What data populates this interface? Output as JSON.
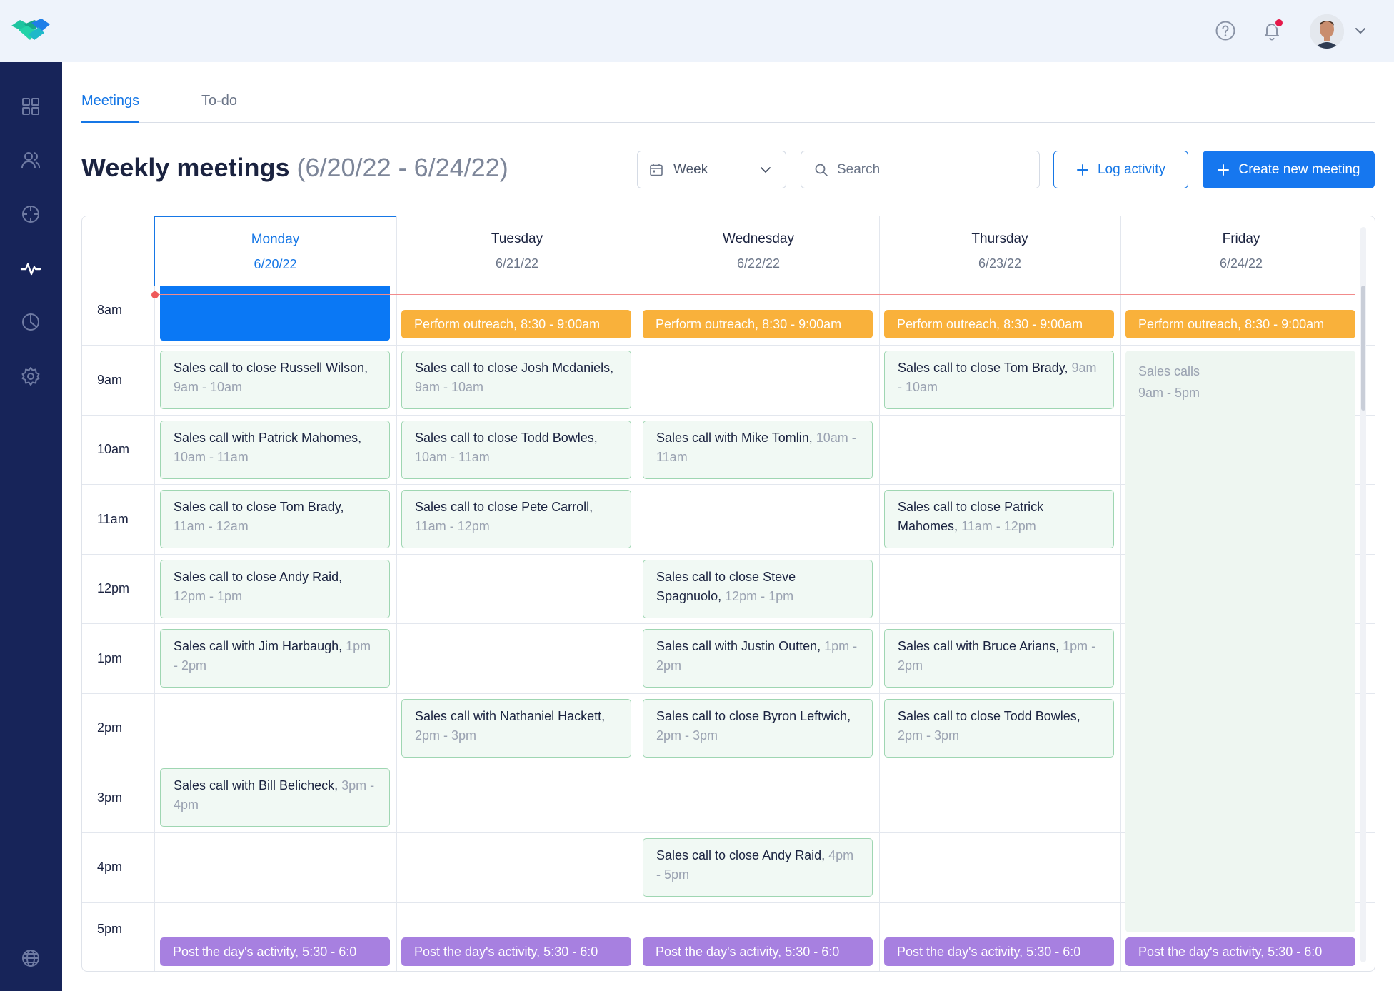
{
  "header": {
    "logo": "handshake-logo",
    "icons": [
      "help-icon",
      "bell-icon"
    ],
    "notification_dot": true
  },
  "sidebar": {
    "items": [
      {
        "icon": "grid-icon",
        "name": "dashboard"
      },
      {
        "icon": "users-icon",
        "name": "contacts"
      },
      {
        "icon": "target-icon",
        "name": "goals"
      },
      {
        "icon": "activity-icon",
        "name": "activity"
      },
      {
        "icon": "pie-chart-icon",
        "name": "reports"
      },
      {
        "icon": "gear-icon",
        "name": "settings"
      },
      {
        "icon": "globe-icon",
        "name": "language"
      }
    ]
  },
  "tabs": [
    {
      "label": "Meetings",
      "active": true
    },
    {
      "label": "To-do",
      "active": false
    }
  ],
  "page": {
    "title": "Weekly meetings",
    "range": "(6/20/22 - 6/24/22)"
  },
  "toolbar": {
    "view_select": "Week",
    "search_placeholder": "Search",
    "log_label": "Log activity",
    "create_label": "Create new meeting"
  },
  "calendar": {
    "days": [
      {
        "name": "Monday",
        "date": "6/20/22",
        "active": true
      },
      {
        "name": "Tuesday",
        "date": "6/21/22",
        "active": false
      },
      {
        "name": "Wednesday",
        "date": "6/22/22",
        "active": false
      },
      {
        "name": "Thursday",
        "date": "6/23/22",
        "active": false
      },
      {
        "name": "Friday",
        "date": "6/24/22",
        "active": false
      }
    ],
    "times": [
      "8am",
      "9am",
      "10am",
      "11am",
      "12pm",
      "1pm",
      "2pm",
      "3pm",
      "4pm",
      "5pm"
    ],
    "outreach": "Perform outreach, 8:30 - 9:00am",
    "post_activity": "Post the day's activity, 5:30 - 6:0",
    "friday_block": {
      "title": "Sales calls",
      "time": "9am - 5pm"
    },
    "events": {
      "mon_9": {
        "title": "Sales call to close Russell Wilson,",
        "time": "9am - 10am"
      },
      "mon_10": {
        "title": "Sales call with Patrick Mahomes,",
        "time": "10am - 11am"
      },
      "mon_11": {
        "title": "Sales call to close Tom Brady,",
        "time": "11am - 12am"
      },
      "mon_12": {
        "title": "Sales call to close Andy Raid,",
        "time": "12pm - 1pm"
      },
      "mon_1": {
        "title": "Sales call with Jim Harbaugh,",
        "time": "1pm - 2pm"
      },
      "mon_3": {
        "title": "Sales call with Bill Belicheck,",
        "time": "3pm - 4pm"
      },
      "tue_9": {
        "title": "Sales call to close Josh Mcdaniels,",
        "time": "9am - 10am"
      },
      "tue_10": {
        "title": "Sales call to close Todd Bowles,",
        "time": "10am - 11am"
      },
      "tue_11": {
        "title": "Sales call to close Pete Carroll,",
        "time": "11am - 12pm"
      },
      "tue_2": {
        "title": "Sales call with Nathaniel Hackett,",
        "time": "2pm - 3pm"
      },
      "wed_10": {
        "title": "Sales call with Mike Tomlin,",
        "time": "10am - 11am"
      },
      "wed_12": {
        "title": "Sales call to close Steve Spagnuolo,",
        "time": "12pm - 1pm"
      },
      "wed_1": {
        "title": "Sales call with Justin Outten,",
        "time": "1pm - 2pm"
      },
      "wed_2": {
        "title": "Sales call to close Byron Leftwich,",
        "time": "2pm - 3pm"
      },
      "wed_4": {
        "title": "Sales call to close Andy Raid,",
        "time": "4pm - 5pm"
      },
      "thu_9": {
        "title": "Sales call to close Tom Brady,",
        "time": "9am - 10am"
      },
      "thu_11": {
        "title": "Sales call to close Patrick Mahomes,",
        "time": "11am - 12pm"
      },
      "thu_1": {
        "title": "Sales call with Bruce Arians,",
        "time": "1pm - 2pm"
      },
      "thu_2": {
        "title": "Sales call to close Todd Bowles,",
        "time": "2pm - 3pm"
      }
    }
  },
  "colors": {
    "accent": "#1677e6",
    "sidebar": "#172459",
    "outreach": "#f9b13b",
    "post": "#a780e0",
    "meeting_bg": "#f1f9f4",
    "meeting_border": "#9fd6b2"
  }
}
